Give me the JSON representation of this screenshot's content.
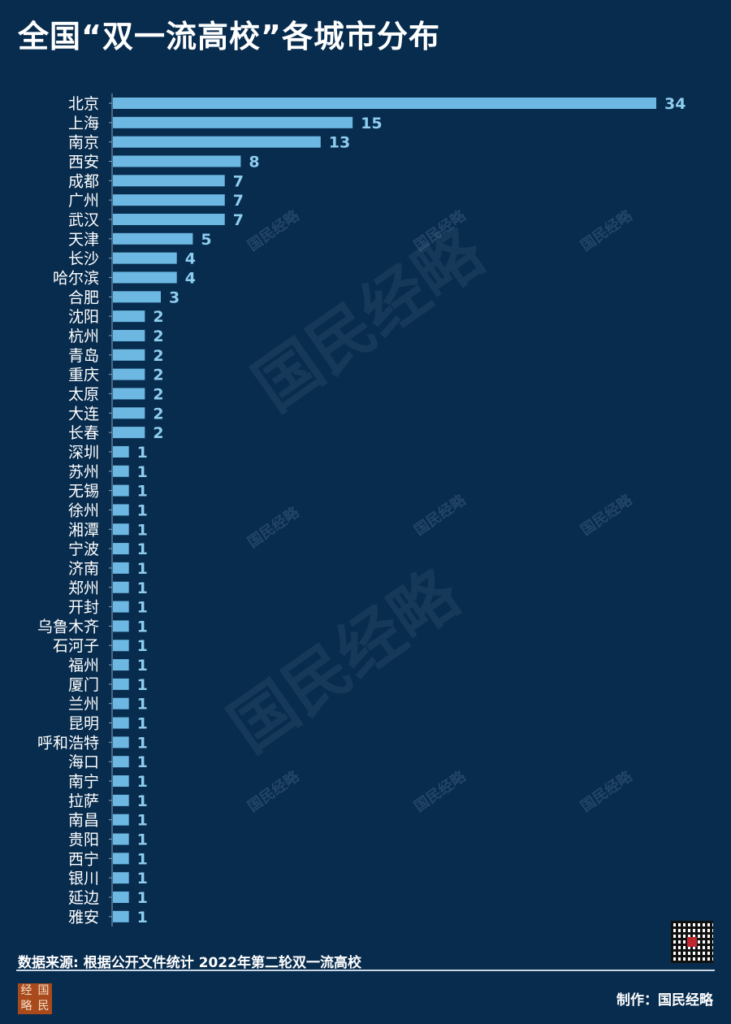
{
  "title": "全国“双一流高校”各城市分布",
  "watermark": "国民经略",
  "source": "数据来源: 根据公开文件统计 2022年第二轮双一流高校",
  "maker": "制作：国民经略",
  "logo_text": "经国略民",
  "colors": {
    "background": "#082c4e",
    "bar": "#6cb8e2",
    "value_label": "#8fcdf0"
  },
  "chart_data": {
    "type": "bar",
    "orientation": "horizontal",
    "categories": [
      "北京",
      "上海",
      "南京",
      "西安",
      "成都",
      "广州",
      "武汉",
      "天津",
      "长沙",
      "哈尔滨",
      "合肥",
      "沈阳",
      "杭州",
      "青岛",
      "重庆",
      "太原",
      "大连",
      "长春",
      "深圳",
      "苏州",
      "无锡",
      "徐州",
      "湘潭",
      "宁波",
      "济南",
      "郑州",
      "开封",
      "乌鲁木齐",
      "石河子",
      "福州",
      "厦门",
      "兰州",
      "昆明",
      "呼和浩特",
      "海口",
      "南宁",
      "拉萨",
      "南昌",
      "贵阳",
      "西宁",
      "银川",
      "延边",
      "雅安"
    ],
    "values": [
      34,
      15,
      13,
      8,
      7,
      7,
      7,
      5,
      4,
      4,
      3,
      2,
      2,
      2,
      2,
      2,
      2,
      2,
      1,
      1,
      1,
      1,
      1,
      1,
      1,
      1,
      1,
      1,
      1,
      1,
      1,
      1,
      1,
      1,
      1,
      1,
      1,
      1,
      1,
      1,
      1,
      1,
      1
    ],
    "xlim": [
      0,
      34
    ],
    "grid": false,
    "data_labels": true
  }
}
